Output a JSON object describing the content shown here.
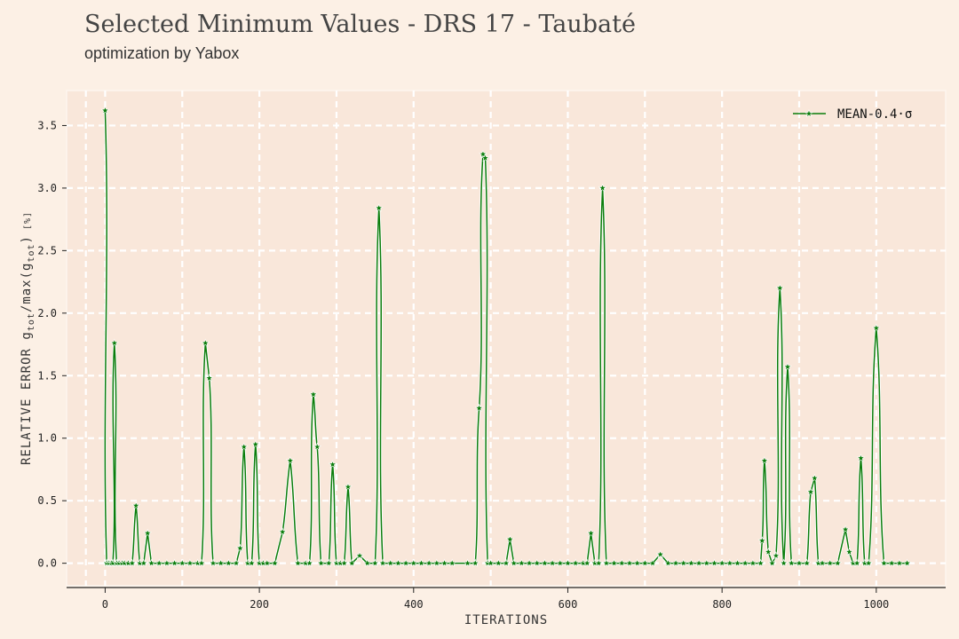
{
  "chart_data": {
    "type": "line",
    "title": "Selected Minimum Values - DRS 17 - Taubaté",
    "subtitle": "optimization by Yabox",
    "xlabel": "ITERATIONS",
    "ylabel": "RELATIVE ERROR g_tot/max(g_tot) [%]",
    "ylabel_parts": {
      "pre": "RELATIVE ERROR g",
      "sub1": "tot",
      "mid": "/max(g",
      "sub2": "tot",
      "post": ")",
      "unit": "[%]"
    },
    "xlim": [
      -50,
      1090
    ],
    "ylim": [
      -0.18,
      3.78
    ],
    "xticks": [
      0,
      200,
      400,
      600,
      800,
      1000
    ],
    "yticks": [
      0.0,
      0.5,
      1.0,
      1.5,
      2.0,
      2.5,
      3.0,
      3.5
    ],
    "xtick_labels": [
      "0",
      "200",
      "400",
      "600",
      "800",
      "1000"
    ],
    "ytick_labels": [
      "0.0",
      "0.5",
      "1.0",
      "1.5",
      "2.0",
      "2.5",
      "3.0",
      "3.5"
    ],
    "grid": true,
    "legend_position": "top-right",
    "series": [
      {
        "name": "MEAN-0.4·σ",
        "color": "#0b7d0b",
        "marker": "star",
        "x": [
          0,
          2,
          5,
          8,
          10,
          12,
          15,
          18,
          22,
          25,
          30,
          35,
          40,
          45,
          50,
          55,
          60,
          70,
          80,
          90,
          100,
          110,
          120,
          125,
          130,
          135,
          140,
          150,
          160,
          170,
          175,
          180,
          185,
          190,
          195,
          200,
          205,
          210,
          220,
          230,
          240,
          250,
          260,
          265,
          270,
          275,
          280,
          290,
          295,
          300,
          305,
          310,
          315,
          320,
          330,
          340,
          350,
          355,
          360,
          370,
          380,
          390,
          400,
          410,
          420,
          430,
          440,
          450,
          470,
          480,
          485,
          490,
          493,
          496,
          500,
          510,
          520,
          525,
          530,
          540,
          550,
          560,
          570,
          580,
          590,
          600,
          610,
          620,
          625,
          630,
          635,
          640,
          645,
          650,
          660,
          670,
          680,
          690,
          700,
          710,
          720,
          730,
          740,
          750,
          760,
          770,
          780,
          790,
          800,
          810,
          820,
          830,
          840,
          850,
          852,
          855,
          860,
          865,
          870,
          875,
          880,
          885,
          890,
          900,
          910,
          915,
          920,
          925,
          930,
          940,
          950,
          960,
          965,
          970,
          975,
          980,
          985,
          990,
          1000,
          1010,
          1020,
          1030,
          1040
        ],
        "values": [
          3.62,
          0.0,
          0.0,
          0.0,
          0.0,
          1.76,
          0.0,
          0.0,
          0.0,
          0.0,
          0.0,
          0.0,
          0.46,
          0.0,
          0.0,
          0.24,
          0.0,
          0.0,
          0.0,
          0.0,
          0.0,
          0.0,
          0.0,
          0.0,
          1.76,
          1.48,
          0.0,
          0.0,
          0.0,
          0.0,
          0.12,
          0.93,
          0.0,
          0.0,
          0.95,
          0.0,
          0.0,
          0.0,
          0.0,
          0.25,
          0.82,
          0.0,
          0.0,
          0.0,
          1.35,
          0.93,
          0.0,
          0.0,
          0.79,
          0.0,
          0.0,
          0.0,
          0.61,
          0.0,
          0.06,
          0.0,
          0.0,
          2.84,
          0.0,
          0.0,
          0.0,
          0.0,
          0.0,
          0.0,
          0.0,
          0.0,
          0.0,
          0.0,
          0.0,
          0.0,
          1.24,
          3.27,
          3.24,
          0.0,
          0.0,
          0.0,
          0.0,
          0.19,
          0.0,
          0.0,
          0.0,
          0.0,
          0.0,
          0.0,
          0.0,
          0.0,
          0.0,
          0.0,
          0.0,
          0.24,
          0.0,
          0.0,
          3.0,
          0.0,
          0.0,
          0.0,
          0.0,
          0.0,
          0.0,
          0.0,
          0.07,
          0.0,
          0.0,
          0.0,
          0.0,
          0.0,
          0.0,
          0.0,
          0.0,
          0.0,
          0.0,
          0.0,
          0.0,
          0.0,
          0.18,
          0.82,
          0.09,
          0.0,
          0.06,
          2.2,
          0.0,
          1.57,
          0.0,
          0.0,
          0.0,
          0.57,
          0.68,
          0.0,
          0.0,
          0.0,
          0.0,
          0.27,
          0.09,
          0.0,
          0.0,
          0.84,
          0.0,
          0.0,
          1.88,
          0.0,
          0.0,
          0.0,
          0.0
        ]
      }
    ]
  }
}
